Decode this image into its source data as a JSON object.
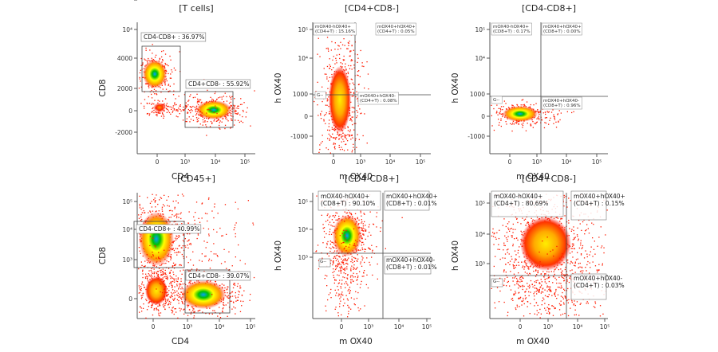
{
  "colors": {
    "density_low": "#ff0000",
    "density_mid": "#ffff00",
    "density_high": "#00c000",
    "density_peak": "#00a0ff",
    "gate_line": "#444444",
    "axis": "#555555"
  },
  "chart_data": [
    {
      "type": "scatter",
      "title": "[T cells]",
      "xlabel": "CD4",
      "ylabel": "CD8",
      "x_ticks": [
        "0",
        "10³",
        "10⁴",
        "10⁵"
      ],
      "y_ticks": [
        "-2000",
        "0",
        "2000",
        "4000",
        "10⁴",
        "10⁵"
      ],
      "gates": [
        {
          "label": "CD4-CD8+ : 36.97%",
          "percent": 36.97
        },
        {
          "label": "CD4+CD8- : 55.92%",
          "percent": 55.92
        }
      ]
    },
    {
      "type": "scatter",
      "title": "[CD4+CD8-]",
      "xlabel": "m OX40",
      "ylabel": "h OX40",
      "x_ticks": [
        "0",
        "10³",
        "10⁴",
        "10⁵"
      ],
      "y_ticks": [
        "-1000",
        "0",
        "1000",
        "10⁴",
        "10⁵"
      ],
      "gates": [
        {
          "label": "mOX40-hOX40+(CD4+T) : 15.16%",
          "percent": 15.16
        },
        {
          "label": "mOX40+hOX40+(CD4+T) : 0.05%",
          "percent": 0.05
        },
        {
          "label": "mOX40+hOX40-(CD4+T) : 0.08%",
          "percent": 0.08
        },
        {
          "label": "G--",
          "percent": null
        }
      ]
    },
    {
      "type": "scatter",
      "title": "[CD4-CD8+]",
      "xlabel": "m OX40",
      "ylabel": "h OX40",
      "x_ticks": [
        "0",
        "10³",
        "10⁴",
        "10⁵"
      ],
      "y_ticks": [
        "-1000",
        "0",
        "1000",
        "10⁴",
        "10⁵"
      ],
      "gates": [
        {
          "label": "mOX40-hOX40+(CD8+T) : 0.17%",
          "percent": 0.17
        },
        {
          "label": "mOX40+hOX40+(CD8+T) : 0.00%",
          "percent": 0.0
        },
        {
          "label": "mOX40+hOX40-(CD8+T) : 0.96%",
          "percent": 0.96
        },
        {
          "label": "G--",
          "percent": null
        }
      ]
    },
    {
      "type": "scatter",
      "title": "[CD45+]",
      "xlabel": "CD4",
      "ylabel": "CD8",
      "x_ticks": [
        "0",
        "10³",
        "10⁴",
        "10⁵"
      ],
      "y_ticks": [
        "0",
        "10³",
        "10⁴",
        "10⁵"
      ],
      "gates": [
        {
          "label": "CD4-CD8+ : 40.99%",
          "percent": 40.99
        },
        {
          "label": "CD4+CD8- : 39.07%",
          "percent": 39.07
        }
      ]
    },
    {
      "type": "scatter",
      "title": "[CD4-CD8+]",
      "xlabel": "m OX40",
      "ylabel": "h OX40",
      "x_ticks": [
        "0",
        "10³",
        "10⁴",
        "10⁵"
      ],
      "y_ticks": [
        "10³",
        "10⁴",
        "10⁵"
      ],
      "gates": [
        {
          "label": "mOX40-hOX40+(CD8+T) : 90.10%",
          "percent": 90.1
        },
        {
          "label": "mOX40+hOX40+(CD8+T) : 0.01%",
          "percent": 0.01
        },
        {
          "label": "mOX40+hOX40-(CD8+T) : 0.01%",
          "percent": 0.01
        },
        {
          "label": "G--",
          "percent": null
        }
      ]
    },
    {
      "type": "scatter",
      "title": "[CD4+CD8-]",
      "xlabel": "m OX40",
      "ylabel": "h OX40",
      "x_ticks": [
        "0",
        "10³",
        "10⁴",
        "10⁵"
      ],
      "y_ticks": [
        "10³",
        "10⁴",
        "10⁵"
      ],
      "gates": [
        {
          "label": "mOX40-hOX40+(CD4+T) : 80.69%",
          "percent": 80.69
        },
        {
          "label": "mOX40+hOX40+(CD4+T) : 0.15%",
          "percent": 0.15
        },
        {
          "label": "mOX40+hOX40-(CD4+T) : 0.03%",
          "percent": 0.03
        },
        {
          "label": "G--",
          "percent": null
        }
      ]
    }
  ]
}
